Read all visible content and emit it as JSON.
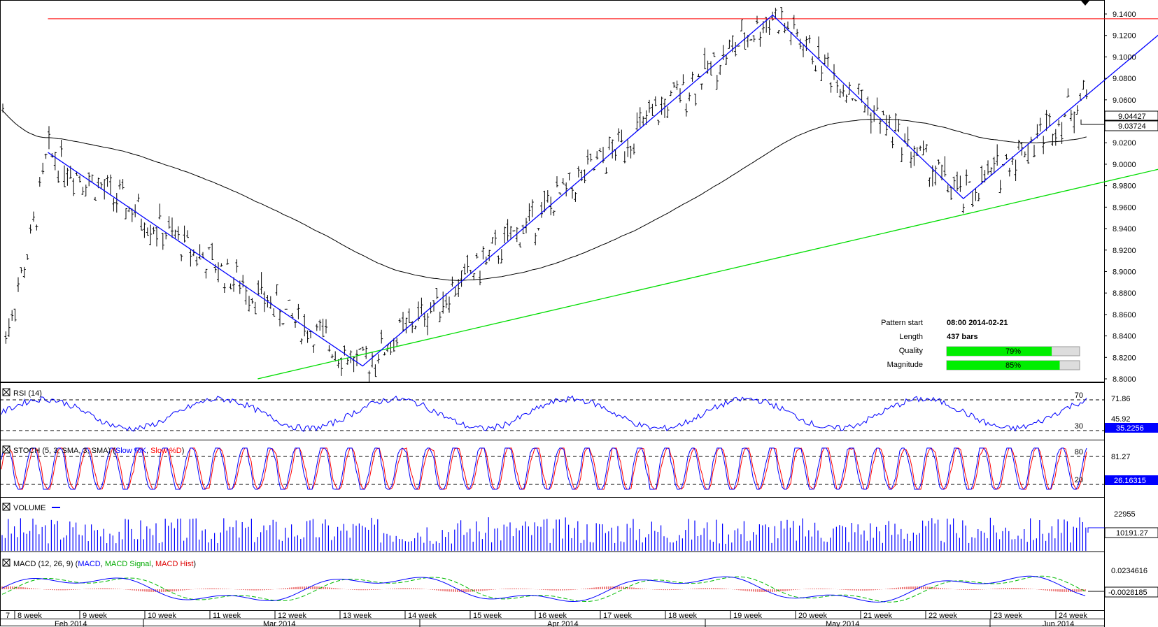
{
  "price_axis": {
    "ticks": [
      "9.1400",
      "9.1200",
      "9.1000",
      "9.0800",
      "9.0600",
      "9.0400",
      "9.0200",
      "9.0000",
      "8.9800",
      "8.9600",
      "8.9400",
      "8.9200",
      "8.9000",
      "8.8800",
      "8.8600",
      "8.8400",
      "8.8200",
      "8.8000"
    ],
    "current_price_label": "9.04427",
    "current_price_label_2": "9.03724"
  },
  "info_box": {
    "pattern_start_label": "Pattern start",
    "pattern_start_value": "08:00 2014-02-21",
    "length_label": "Length",
    "length_value": "437 bars",
    "quality_label": "Quality",
    "quality_value": "79%",
    "quality_fraction": 0.79,
    "magnitude_label": "Magnitude",
    "magnitude_value": "85%",
    "magnitude_fraction": 0.85
  },
  "rsi": {
    "label": "RSI (14)",
    "level_high": "70",
    "level_low": "30",
    "axis_top": "71.86",
    "axis_mid": "45.92",
    "value_label": "35.2256"
  },
  "stoch": {
    "label": "STOCH (5, 3, SMA, 3, SMA)",
    "legend_k": "Slow %K",
    "legend_d": "Slow %D",
    "level_high": "80",
    "level_low": "20",
    "axis_top": "81.27",
    "value_label": "26.16315"
  },
  "volume": {
    "label": "VOLUME",
    "axis_top": "22955",
    "value_label": "10191.27"
  },
  "macd": {
    "label": "MACD (12, 26, 9)",
    "legend_macd": "MACD",
    "legend_signal": "MACD Signal",
    "legend_hist": "MACD Hist",
    "axis_top": "0.0234616",
    "value_label": "-0.0028185"
  },
  "week_labels": [
    "7",
    "8 week",
    "9 week",
    "10 week",
    "11 week",
    "12 week",
    "13 week",
    "14 week",
    "15 week",
    "16 week",
    "17 week",
    "18 week",
    "19 week",
    "20 week",
    "21 week",
    "22 week",
    "23 week",
    "24 week"
  ],
  "month_labels": [
    "Feb 2014",
    "Mar 2014",
    "Apr 2014",
    "May 2014",
    "Jun 2014"
  ],
  "colors": {
    "bars": "#000000",
    "ma": "#000000",
    "zigzag": "#0000ff",
    "resistance": "#ff0000",
    "support": "#00dd00",
    "rsi": "#0000ff",
    "stoch_k": "#0000ff",
    "stoch_d": "#ff0000",
    "volume": "#0000ff",
    "macd": "#0000ff",
    "signal": "#00bb00",
    "hist": "#dd0000",
    "bar_green": "#00ee00"
  },
  "chart_data": {
    "type": "line",
    "description_of_series": [
      "price bars (OHLC)",
      "moving average",
      "zigzag pattern",
      "resistance line",
      "support line"
    ],
    "ylim": [
      8.8,
      9.14
    ],
    "zigzag_points": [
      {
        "x": "2014-02-07",
        "y": 9.011
      },
      {
        "x": "2014-03-12",
        "y": 8.812
      },
      {
        "x": "2014-04-24",
        "y": 9.139
      },
      {
        "x": "2014-05-14",
        "y": 8.968
      },
      {
        "x": "2014-06-05",
        "y": 9.132
      }
    ],
    "resistance": {
      "from": {
        "x": "2014-02-07",
        "y": 9.1355
      },
      "to": {
        "x": "2014-06-27",
        "y": 9.1355
      }
    },
    "support": {
      "from": {
        "x": "2014-03-01",
        "y": 8.8
      },
      "to": {
        "x": "2014-06-27",
        "y": 9.044
      }
    }
  }
}
